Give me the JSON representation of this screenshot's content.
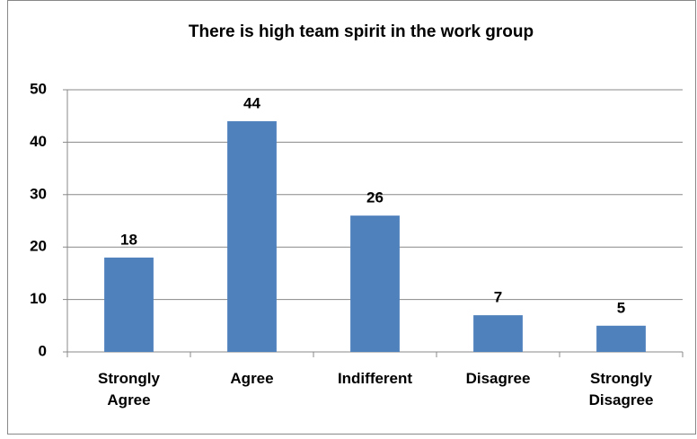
{
  "chart_data": {
    "type": "bar",
    "title": "There is high team spirit in the work group",
    "categories": [
      "Strongly Agree",
      "Agree",
      "Indifferent",
      "Disagree",
      "Strongly Disagree"
    ],
    "values": [
      18,
      44,
      26,
      7,
      5
    ],
    "color": "#4f81bd",
    "ylim": [
      0,
      50
    ],
    "yticks": [
      0,
      10,
      20,
      30,
      40,
      50
    ],
    "grid": true
  }
}
